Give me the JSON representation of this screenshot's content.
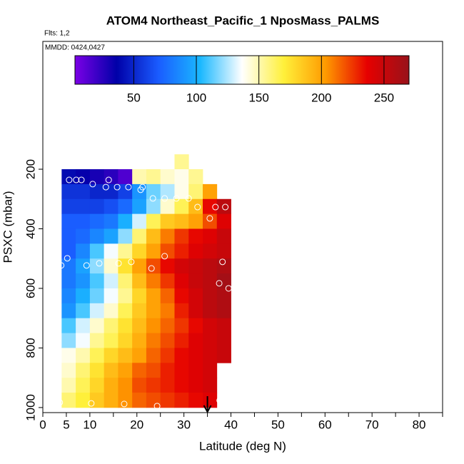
{
  "chart_data": {
    "type": "heatmap",
    "title": "ATOM4 Northeast_Pacific_1 NposMass_PALMS",
    "subtitle": "Flts: 1,2",
    "annotation": "MMDD: 0424,0427",
    "xlabel": "Latitude (deg N)",
    "ylabel": "PSXC (mbar)",
    "xlim": [
      0,
      85
    ],
    "ylim": [
      1017,
      -229
    ],
    "xticks": [
      0,
      5,
      10,
      20,
      30,
      40,
      50,
      60,
      70,
      80
    ],
    "xminor_ticks": [
      15,
      25,
      35,
      45,
      55,
      65,
      75,
      85
    ],
    "yticks": [
      200,
      400,
      600,
      800,
      1000
    ],
    "clim": [
      3,
      270
    ],
    "cticks": [
      50,
      100,
      150,
      200,
      250
    ],
    "colormap": [
      "#7b00e6",
      "#0000a8",
      "#1a5cff",
      "#1ab8ff",
      "#ffffff",
      "#fff03a",
      "#ff9a00",
      "#e60000",
      "#98121a"
    ],
    "x_bins": [
      4,
      7,
      10,
      13,
      16,
      19,
      22,
      25,
      28,
      31,
      34,
      37,
      40
    ],
    "y_bins": [
      150,
      200,
      250,
      300,
      350,
      400,
      450,
      500,
      550,
      600,
      650,
      700,
      750,
      800,
      850,
      900,
      950,
      1000
    ],
    "z": [
      [
        null,
        null,
        null,
        null,
        null,
        null,
        null,
        null,
        155,
        null,
        null,
        null
      ],
      [
        40,
        35,
        30,
        25,
        15,
        150,
        155,
        145,
        140,
        155,
        null,
        null
      ],
      [
        55,
        55,
        50,
        50,
        60,
        90,
        115,
        125,
        140,
        160,
        200,
        null
      ],
      [
        60,
        60,
        60,
        65,
        75,
        95,
        120,
        145,
        165,
        190,
        235,
        255
      ],
      [
        70,
        70,
        75,
        80,
        100,
        130,
        165,
        185,
        190,
        200,
        220,
        240
      ],
      [
        70,
        75,
        85,
        95,
        120,
        160,
        190,
        210,
        225,
        235,
        240,
        250
      ],
      [
        70,
        85,
        110,
        135,
        155,
        180,
        200,
        220,
        230,
        240,
        245,
        250
      ],
      [
        80,
        95,
        120,
        145,
        175,
        200,
        220,
        235,
        245,
        250,
        255,
        260
      ],
      [
        80,
        90,
        110,
        130,
        160,
        190,
        210,
        225,
        240,
        250,
        255,
        265
      ],
      [
        85,
        100,
        115,
        135,
        155,
        180,
        200,
        215,
        235,
        245,
        255,
        260
      ],
      [
        90,
        110,
        130,
        145,
        165,
        185,
        200,
        210,
        230,
        245,
        255,
        260
      ],
      [
        110,
        130,
        145,
        160,
        175,
        190,
        205,
        215,
        225,
        235,
        245,
        250
      ],
      [
        120,
        135,
        155,
        165,
        180,
        195,
        210,
        220,
        230,
        240,
        245,
        250
      ],
      [
        140,
        150,
        165,
        180,
        190,
        200,
        215,
        225,
        235,
        240,
        245,
        250
      ],
      [
        145,
        160,
        175,
        190,
        200,
        215,
        220,
        230,
        235,
        240,
        245,
        null
      ],
      [
        150,
        165,
        180,
        195,
        205,
        220,
        225,
        230,
        235,
        240,
        245,
        null
      ],
      [
        160,
        170,
        185,
        195,
        205,
        215,
        220,
        225,
        230,
        235,
        240,
        null
      ]
    ],
    "points": {
      "x": [
        5.6,
        7.1,
        8.2,
        10.6,
        14,
        13.4,
        15.8,
        18.2,
        20.8,
        21.2,
        23.4,
        25.9,
        28.4,
        31,
        32.9,
        36.7,
        38.8,
        35.5,
        5.2,
        3.9,
        9.3,
        12,
        16.1,
        18.8,
        23.1,
        25.9,
        38.2,
        37.5,
        39.5,
        3.6,
        10.3,
        17.3,
        24.3,
        37.6
      ],
      "y": [
        236,
        236,
        236,
        250,
        236,
        260,
        260,
        260,
        269,
        260,
        298,
        298,
        298,
        298,
        327,
        327,
        327,
        365,
        499,
        523,
        523,
        516,
        516,
        511,
        533,
        492,
        511,
        583,
        600,
        983,
        986,
        988,
        995,
        976
      ]
    },
    "arrow_x": 35
  }
}
